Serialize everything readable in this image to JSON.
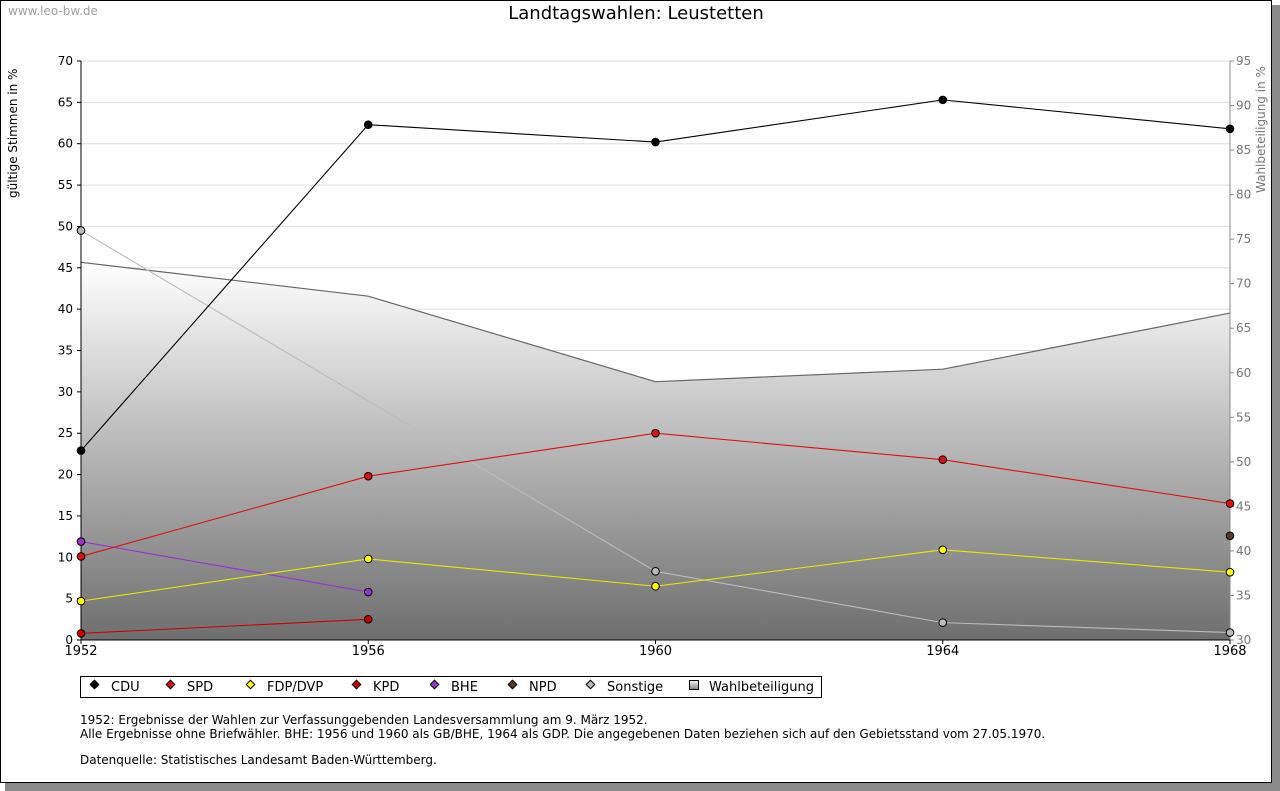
{
  "watermark": "www.leo-bw.de",
  "chart_data": {
    "type": "line",
    "title": "Landtagswahlen: Leustetten",
    "x": [
      1952,
      1956,
      1960,
      1964,
      1968
    ],
    "ylabel": "gültige Stimmen in %",
    "y2label": "Wahlbeteiligung in %",
    "ylim": [
      0,
      70
    ],
    "y2lim": [
      30,
      95
    ],
    "yticks": [
      0,
      5,
      10,
      15,
      20,
      25,
      30,
      35,
      40,
      45,
      50,
      55,
      60,
      65,
      70
    ],
    "y2ticks": [
      30,
      35,
      40,
      45,
      50,
      55,
      60,
      65,
      70,
      75,
      80,
      85,
      90,
      95
    ],
    "grid": true,
    "series": [
      {
        "name": "CDU",
        "color": "#000000",
        "line": "#000000",
        "values": [
          22.9,
          62.3,
          60.2,
          65.3,
          61.8
        ]
      },
      {
        "name": "SPD",
        "color": "#dd1111",
        "line": "#dd1111",
        "values": [
          10.1,
          19.8,
          25.0,
          21.8,
          16.5
        ]
      },
      {
        "name": "FDP/DVP",
        "color": "#ffff00",
        "line": "#e8e800",
        "values": [
          4.7,
          9.8,
          6.5,
          10.9,
          8.2
        ]
      },
      {
        "name": "KPD",
        "color": "#cc0000",
        "line": "#cc0000",
        "values": [
          0.8,
          2.5,
          null,
          null,
          null
        ]
      },
      {
        "name": "BHE",
        "color": "#9933cc",
        "line": "#9933cc",
        "values": [
          11.9,
          5.8,
          null,
          null,
          null
        ]
      },
      {
        "name": "NPD",
        "color": "#5a3a28",
        "line": "#5a3a28",
        "values": [
          null,
          null,
          null,
          null,
          12.6
        ]
      },
      {
        "name": "Sonstige",
        "color": "#bbbbbb",
        "line": "#bbbbbb",
        "values": [
          49.5,
          null,
          8.3,
          2.1,
          0.9
        ]
      }
    ],
    "turnout": {
      "name": "Wahlbeteiligung",
      "axis": "right",
      "values": [
        72.4,
        68.6,
        59.0,
        60.4,
        66.7
      ]
    },
    "legend": [
      "CDU",
      "SPD",
      "FDP/DVP",
      "KPD",
      "BHE",
      "NPD",
      "Sonstige",
      "Wahlbeteiligung"
    ]
  },
  "notes": [
    "1952: Ergebnisse der Wahlen zur Verfassunggebenden Landesversammlung am 9. März 1952.",
    "Alle Ergebnisse ohne Briefwähler. BHE: 1956 und 1960 als GB/BHE, 1964 als GDP. Die angegebenen Daten beziehen sich auf den Gebietsstand vom 27.05.1970.",
    "Datenquelle: Statistisches Landesamt Baden-Württemberg."
  ]
}
